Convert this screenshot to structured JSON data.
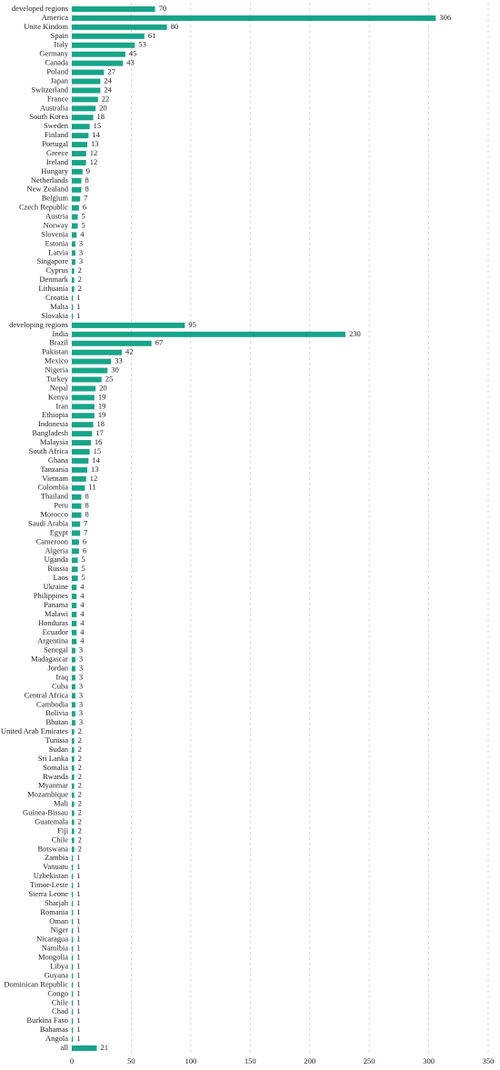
{
  "chart_data": {
    "type": "barh",
    "color": "#17a589",
    "grid": true,
    "categories": [
      "developed regions",
      "America",
      "Unite Kindom",
      "Spain",
      "Italy",
      "Germany",
      "Canada",
      "Poland",
      "Japan",
      "Switzerland",
      "France",
      "Australia",
      "South Korea",
      "Sweden",
      "Finland",
      "Portugal",
      "Greece",
      "Ireland",
      "Hungary",
      "Netherlands",
      "New Zealand",
      "Belgium",
      "Czech Republic",
      "Austria",
      "Norway",
      "Slovenia",
      "Estonia",
      "Latvia",
      "Singapore",
      "Cyprus",
      "Denmark",
      "Lithuania",
      "Croatia",
      "Malta",
      "Slovakia",
      "developing regions",
      "India",
      "Brazil",
      "Pakistan",
      "Mexico",
      "Nigeria",
      "Turkey",
      "Nepal",
      "Kenya",
      "Iran",
      "Ethiopia",
      "Indonesia",
      "Bangladesh",
      "Malaysia",
      "South Africa",
      "Ghana",
      "Tanzania",
      "Vietnam",
      "Colombia",
      "Thailand",
      "Peru",
      "Morocco",
      "Saudi Arabia",
      "Egypt",
      "Cameroon",
      "Algeria",
      "Uganda",
      "Russia",
      "Laos",
      "Ukraine",
      "Philippines",
      "Panama",
      "Malawi",
      "Honduras",
      "Ecuador",
      "Argentina",
      "Senegal",
      "Madagascar",
      "Jordan",
      "Iraq",
      "Cuba",
      "Central Africa",
      "Cambodia",
      "Bolivia",
      "Bhutan",
      "United Arab Emirates",
      "Tunisia",
      "Sudan",
      "Sri Lanka",
      "Somalia",
      "Rwanda",
      "Myanmar",
      "Mozambique",
      "Mali",
      "Guinea-Bissau",
      "Guatemala",
      "Fiji",
      "Chile",
      "Botswana",
      "Zambia",
      "Vanuatu",
      "Uzbekistan",
      "Timor-Leste",
      "Sierra Leone",
      "Sharjah",
      "Romania",
      "Oman",
      "Niger",
      "Nicaragua",
      "Namibia",
      "Mongolia",
      "Libya",
      "Guyana",
      "Dominican Republic",
      "Congo",
      "Chile",
      "Chad",
      "Burkina Faso",
      "Bahamas",
      "Angola",
      "all"
    ],
    "values": [
      70,
      306,
      80,
      61,
      53,
      45,
      43,
      27,
      24,
      24,
      22,
      20,
      18,
      15,
      14,
      13,
      12,
      12,
      9,
      8,
      8,
      7,
      6,
      5,
      5,
      4,
      3,
      3,
      3,
      2,
      2,
      2,
      1,
      1,
      1,
      95,
      230,
      67,
      42,
      33,
      30,
      25,
      20,
      19,
      19,
      19,
      18,
      17,
      16,
      15,
      14,
      13,
      12,
      11,
      8,
      8,
      8,
      7,
      7,
      6,
      6,
      5,
      5,
      5,
      4,
      4,
      4,
      4,
      4,
      4,
      4,
      3,
      3,
      3,
      3,
      3,
      3,
      3,
      3,
      3,
      2,
      2,
      2,
      2,
      2,
      2,
      2,
      2,
      2,
      2,
      2,
      2,
      2,
      2,
      1,
      1,
      1,
      1,
      1,
      1,
      1,
      1,
      1,
      1,
      1,
      1,
      1,
      1,
      1,
      1,
      1,
      1,
      1,
      1,
      1,
      21
    ],
    "xlim": [
      0,
      350
    ],
    "xticks": [
      0,
      50,
      100,
      150,
      200,
      250,
      300,
      350
    ]
  }
}
